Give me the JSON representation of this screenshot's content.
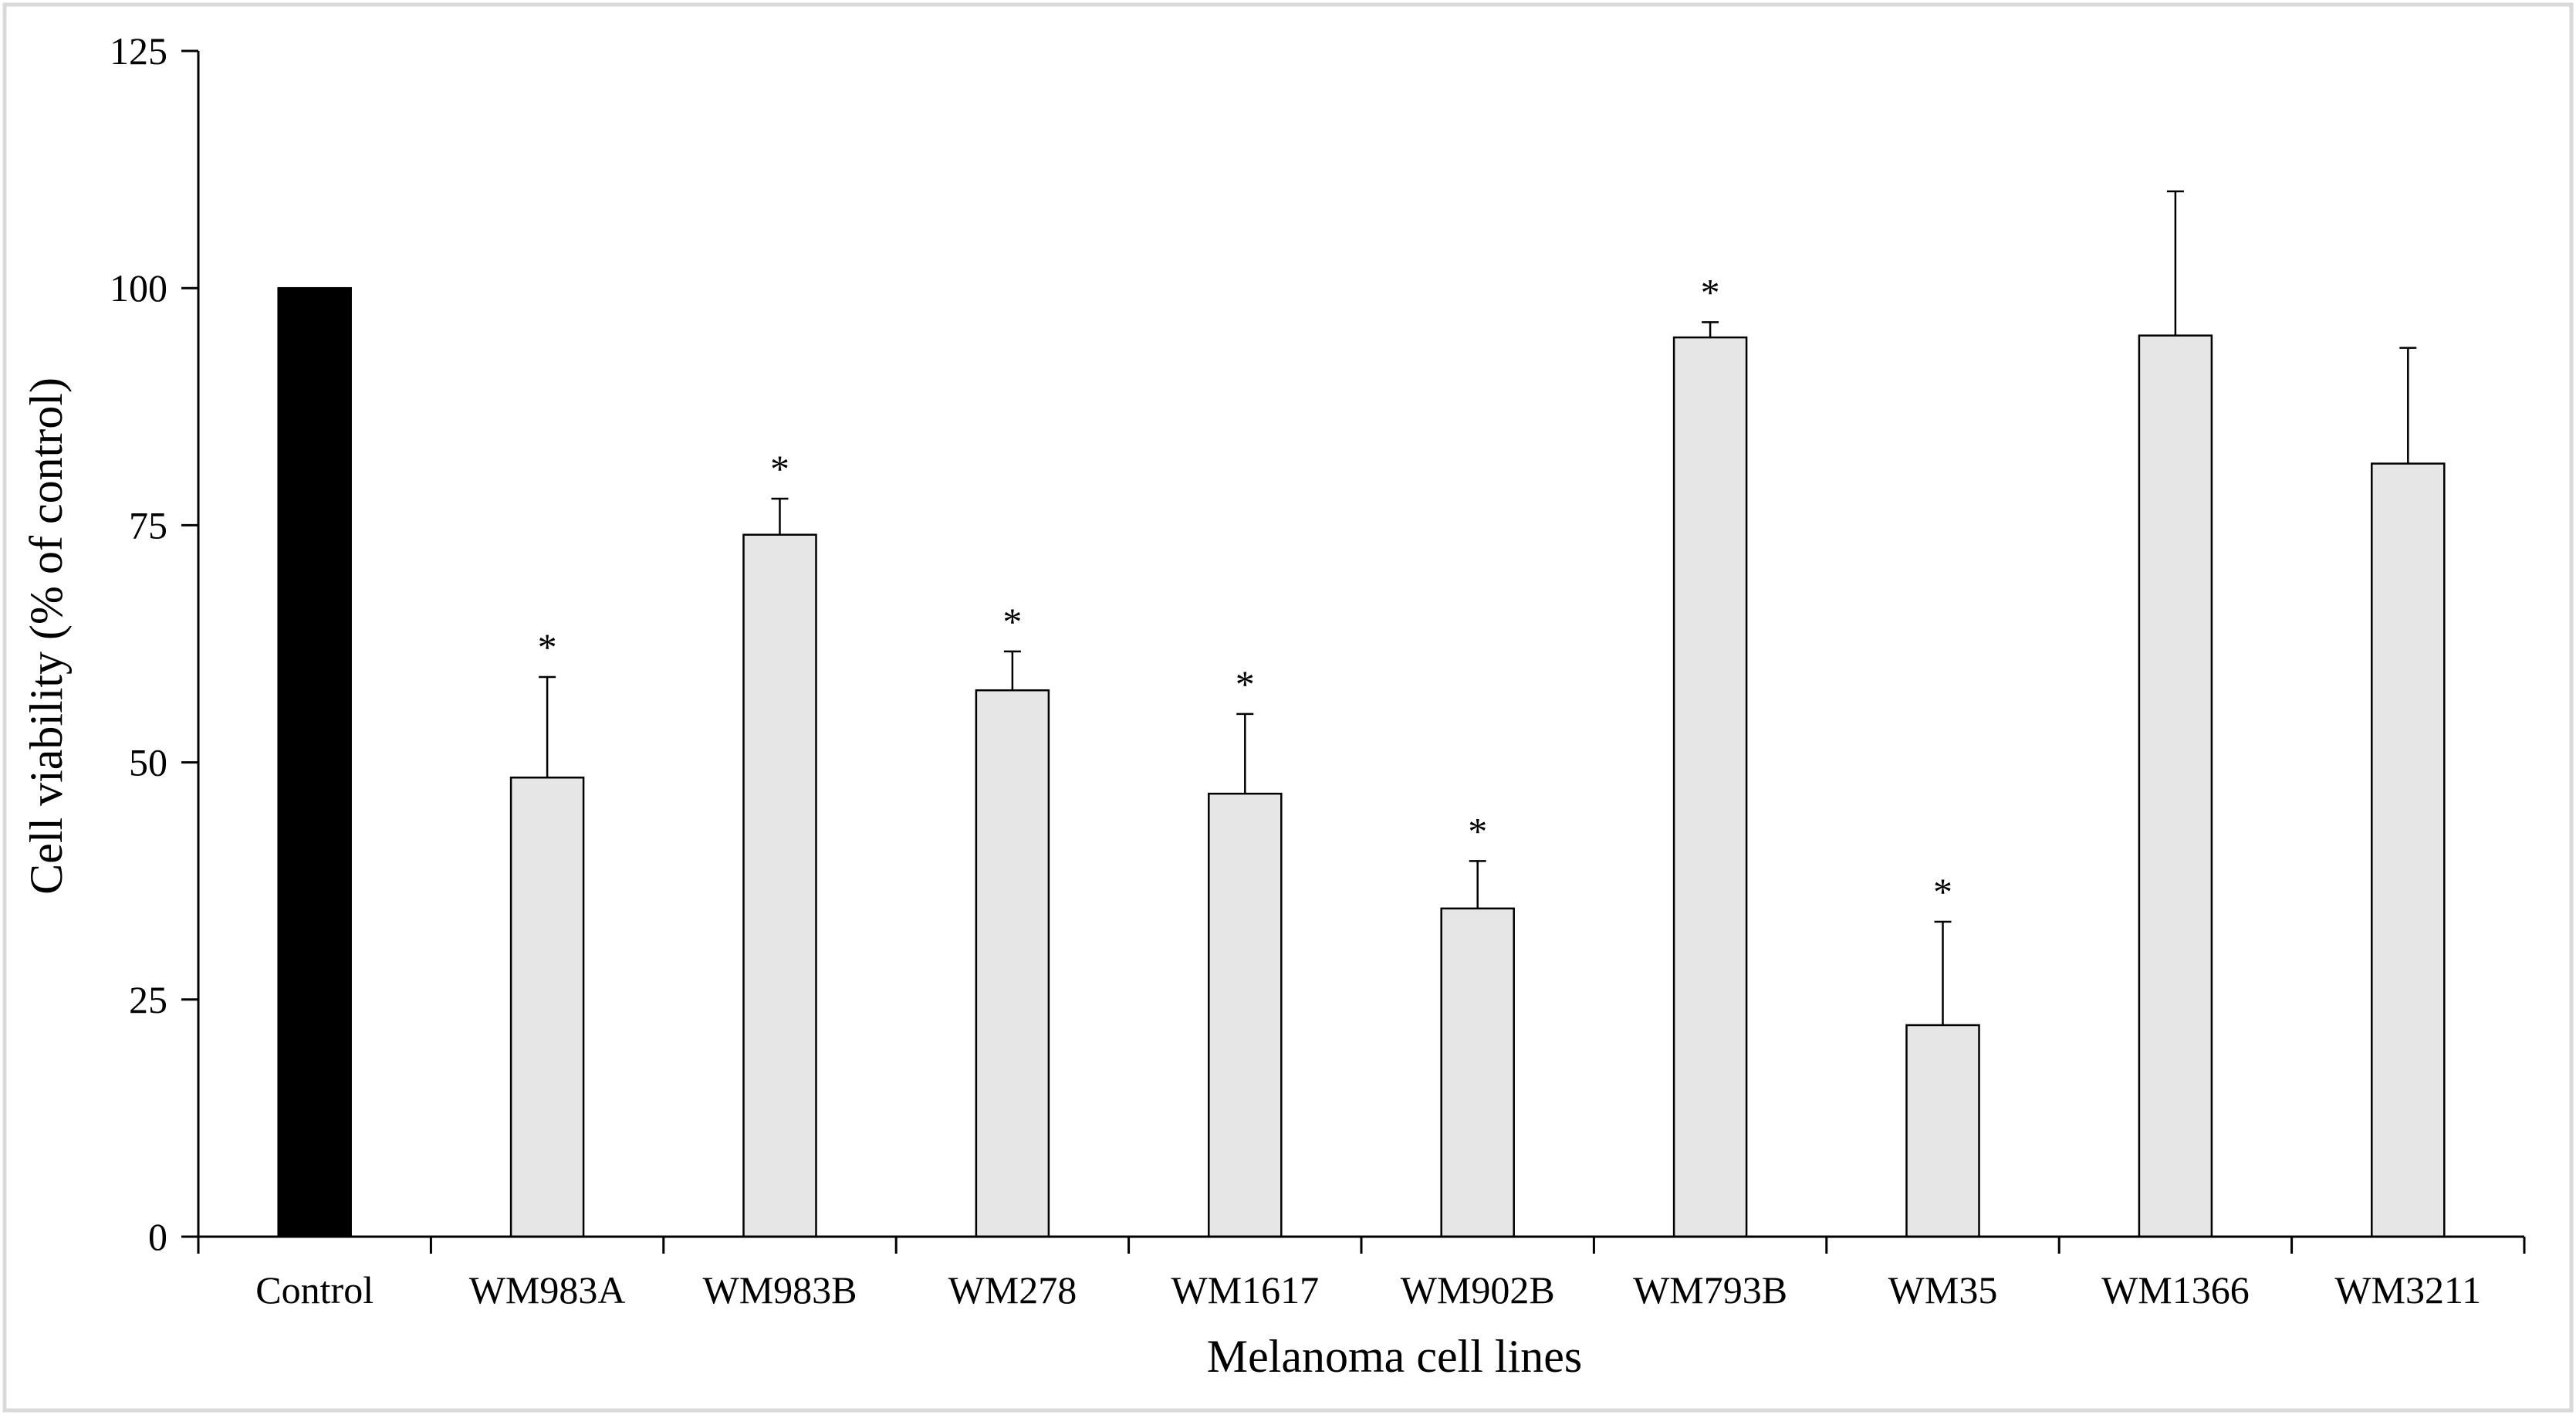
{
  "chart_data": {
    "type": "bar",
    "title": "",
    "xlabel": "Melanoma cell lines",
    "ylabel": "Cell viability (% of control)",
    "ylim": [
      0,
      125
    ],
    "yticks": [
      0,
      25,
      50,
      75,
      100,
      125
    ],
    "ytick_labels": [
      "0",
      "25",
      "50",
      "75",
      "100",
      "125"
    ],
    "grid": false,
    "legend": "none",
    "categories": [
      "Control",
      "WM983A",
      "WM983B",
      "WM278",
      "WM1617",
      "WM902B",
      "WM793B",
      "WM35",
      "WM1366",
      "WM3211"
    ],
    "values": [
      100,
      48.4,
      74,
      57.6,
      46.7,
      34.6,
      94.8,
      22.3,
      95,
      81.5
    ],
    "error": [
      0,
      10.6,
      3.8,
      4.1,
      8.4,
      5,
      1.6,
      10.9,
      15.2,
      12.2
    ],
    "significance": [
      "",
      "*",
      "*",
      "*",
      "*",
      "*",
      "*",
      "*",
      "",
      ""
    ],
    "colors": {
      "control_fill": "#000000",
      "bar_fill": "#e6e6e6",
      "bar_edge": "#000000",
      "axis": "#000000",
      "frame": "#d9d9d9"
    }
  }
}
